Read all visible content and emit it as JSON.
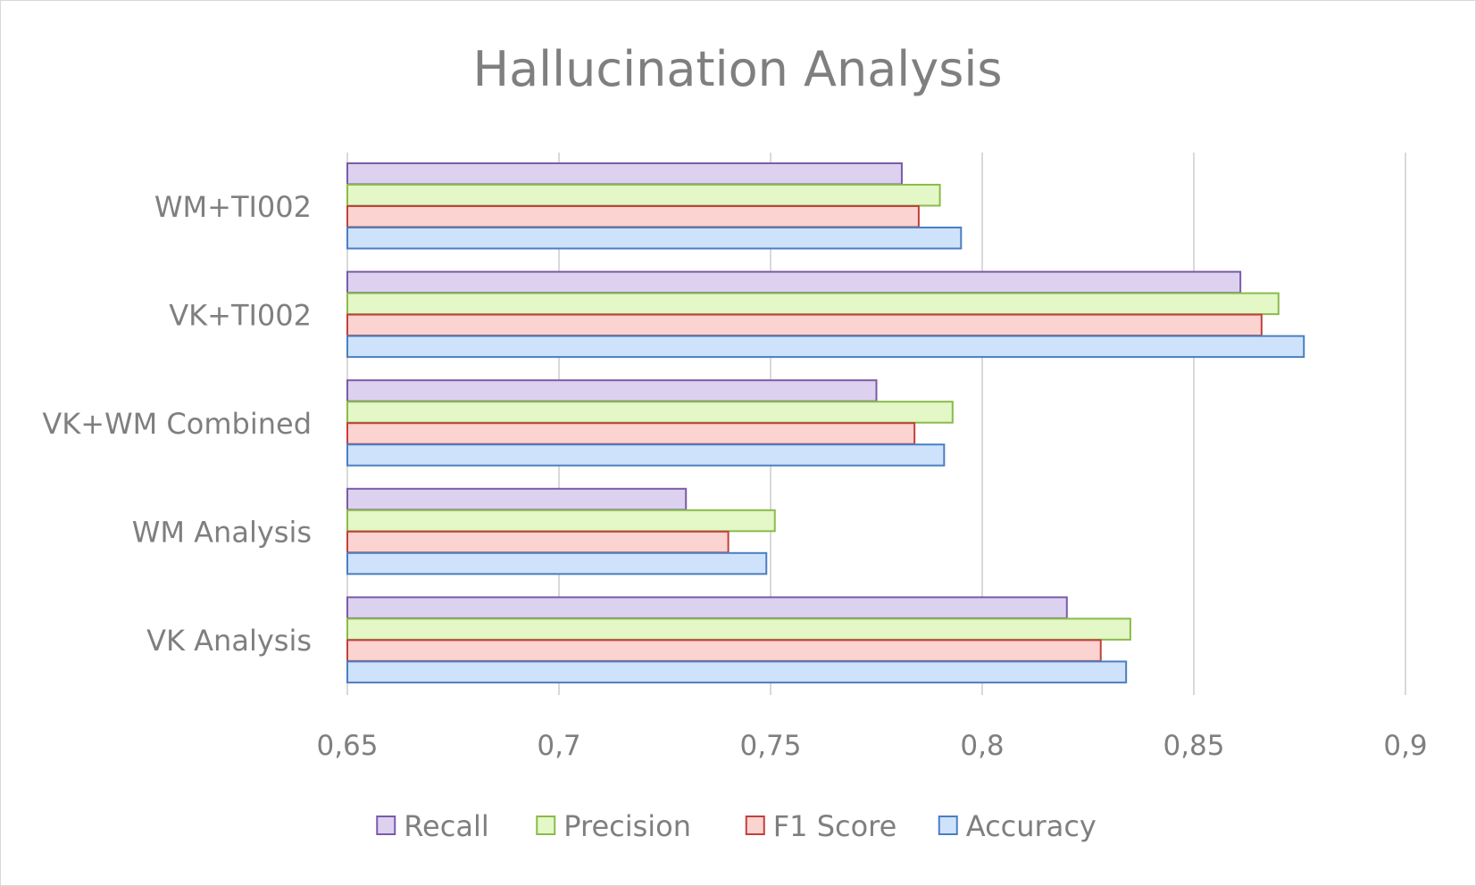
{
  "chart_data": {
    "type": "bar",
    "orientation": "horizontal",
    "title": "Hallucination Analysis",
    "xlabel": "",
    "ylabel": "",
    "xlim": [
      0.65,
      0.9
    ],
    "x_ticks": [
      "0,65",
      "0,7",
      "0,75",
      "0,8",
      "0,85",
      "0,9"
    ],
    "x_tick_values": [
      0.65,
      0.7,
      0.75,
      0.8,
      0.85,
      0.9
    ],
    "grid": true,
    "legend_position": "bottom",
    "categories": [
      "WM+TI002",
      "VK+TI002",
      "VK+WM Combined",
      "WM Analysis",
      "VK Analysis"
    ],
    "series": [
      {
        "name": "Recall",
        "fill": "#dcd2f0",
        "stroke": "#7a5ba8",
        "values": [
          0.781,
          0.861,
          0.775,
          0.73,
          0.82
        ]
      },
      {
        "name": "Precision",
        "fill": "#e3f7c7",
        "stroke": "#8bbb4a",
        "values": [
          0.79,
          0.87,
          0.793,
          0.751,
          0.835
        ]
      },
      {
        "name": "F1 Score",
        "fill": "#fbd3d1",
        "stroke": "#c0413c",
        "values": [
          0.785,
          0.866,
          0.784,
          0.74,
          0.828
        ]
      },
      {
        "name": "Accuracy",
        "fill": "#cfe2fb",
        "stroke": "#4a7fc1",
        "values": [
          0.795,
          0.876,
          0.791,
          0.749,
          0.834
        ]
      }
    ]
  },
  "colors": {
    "text": "#7f7f7f",
    "gridline": "#d9d9d9",
    "border": "#d9d9d9"
  }
}
